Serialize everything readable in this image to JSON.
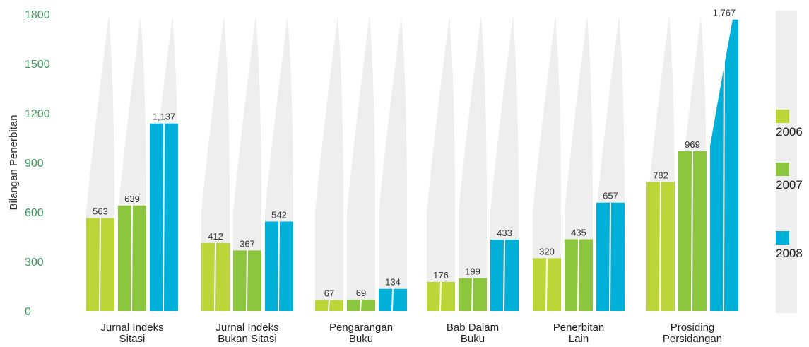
{
  "chart_data": {
    "type": "bar",
    "ylabel": "Bilangan Penerbitan",
    "ylim": [
      0,
      1800
    ],
    "yticks": [
      0,
      300,
      600,
      900,
      1200,
      1500,
      1800
    ],
    "categories": [
      [
        "Jurnal Indeks",
        "Sitasi"
      ],
      [
        "Jurnal Indeks",
        "Bukan Sitasi"
      ],
      [
        "Pengarangan",
        "Buku"
      ],
      [
        "Bab Dalam",
        "Buku"
      ],
      [
        "Penerbitan",
        "Lain"
      ],
      [
        "Prosiding",
        "Persidangan"
      ]
    ],
    "series": [
      {
        "name": "2006",
        "color": "#bcd63a",
        "values": [
          563,
          412,
          67,
          176,
          320,
          782
        ],
        "labels": [
          "563",
          "412",
          "67",
          "176",
          "320",
          "782"
        ]
      },
      {
        "name": "2007",
        "color": "#8cc63f",
        "values": [
          639,
          367,
          69,
          199,
          435,
          969
        ],
        "labels": [
          "639",
          "367",
          "69",
          "199",
          "435",
          "969"
        ]
      },
      {
        "name": "2008",
        "color": "#00b0d8",
        "values": [
          1137,
          542,
          134,
          433,
          657,
          1767
        ],
        "labels": [
          "1,137",
          "542",
          "134",
          "433",
          "657",
          "1,767"
        ]
      }
    ],
    "legend": "right",
    "grid": false
  }
}
